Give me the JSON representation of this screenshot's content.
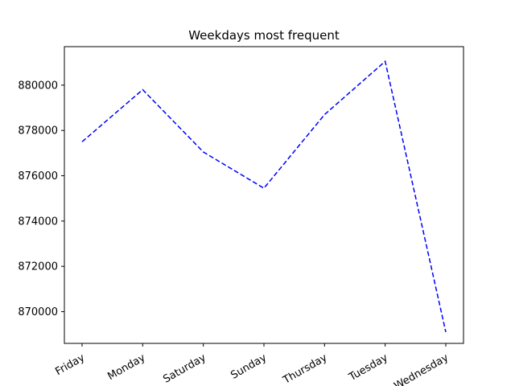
{
  "chart_data": {
    "type": "line",
    "title": "Weekdays most frequent",
    "xlabel": "",
    "ylabel": "",
    "categories": [
      "Friday",
      "Monday",
      "Saturday",
      "Sunday",
      "Thursday",
      "Tuesday",
      "Wednesday"
    ],
    "series": [
      {
        "values": [
          877500,
          879800,
          877050,
          875450,
          878700,
          881050,
          869100
        ],
        "color": "#0000ff",
        "line_style": "dashed"
      }
    ],
    "ylim": [
      868600,
      881700
    ],
    "yticks": [
      870000,
      872000,
      874000,
      876000,
      878000,
      880000
    ],
    "ytick_labels": [
      "870000",
      "872000",
      "874000",
      "876000",
      "878000",
      "880000"
    ],
    "xtick_rotation": 30,
    "grid": false,
    "legend": "none"
  }
}
